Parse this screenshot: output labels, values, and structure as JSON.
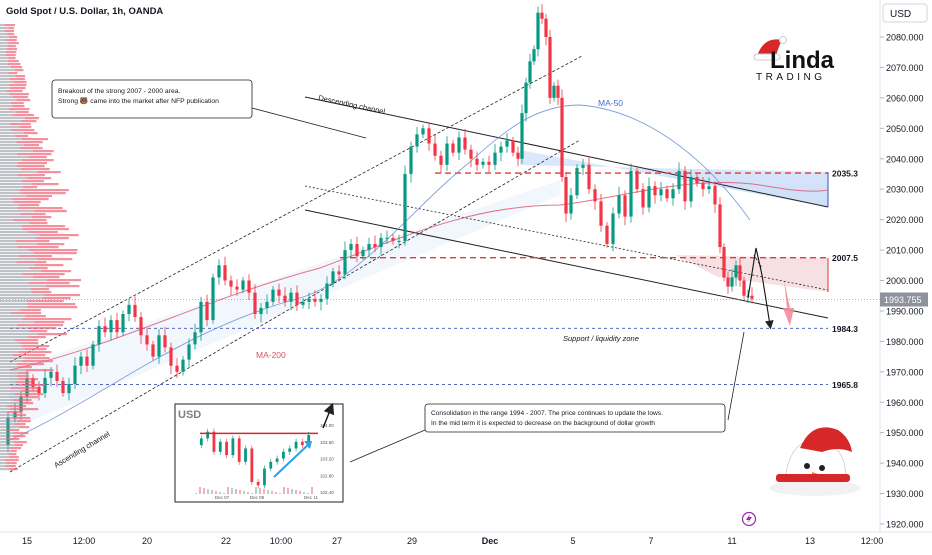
{
  "header": {
    "symbol_title": "Gold Spot / U.S. Dollar, 1h, OANDA",
    "currency_button": "USD"
  },
  "brand": {
    "logo_text_top": "Linda",
    "logo_text_bottom": "TRADING"
  },
  "chart_data": {
    "type": "candlestick",
    "title": "Gold Spot / U.S. Dollar, 1h, OANDA",
    "ylim": [
      1920,
      2090
    ],
    "y_ticks": [
      1920,
      1930,
      1940,
      1950,
      1960,
      1970,
      1980,
      1990,
      2000,
      2010,
      2020,
      2030,
      2040,
      2050,
      2060,
      2070,
      2080
    ],
    "y_tick_labels": [
      "1920.000",
      "1930.000",
      "1940.000",
      "1950.000",
      "1960.000",
      "1970.000",
      "1980.000",
      "1990.000",
      "2000.000",
      "2010.000",
      "2020.000",
      "2030.000",
      "2040.000",
      "2050.000",
      "2060.000",
      "2070.000",
      "2080.000"
    ],
    "x_tick_labels": [
      "15",
      "12:00",
      "20",
      "22",
      "10:00",
      "27",
      "29",
      "Dec",
      "5",
      "7",
      "11",
      "13",
      "12:00"
    ],
    "current_price": 1993.755,
    "current_price_label": "1993.755",
    "levels": [
      {
        "value": 2035.3,
        "label": "2035.3",
        "color": "#e53935",
        "style": "dashed"
      },
      {
        "value": 2007.5,
        "label": "2007.5",
        "color": "#e53935",
        "style": "dashed"
      },
      {
        "value": 1984.3,
        "label": "1984.3",
        "color": "#3f51b5",
        "style": "dashed"
      },
      {
        "value": 1965.8,
        "label": "1965.8",
        "color": "#3f51b5",
        "style": "dashed"
      }
    ],
    "series": [
      {
        "name": "Gold Spot / U.S. Dollar",
        "points": [
          [
            0,
            1946
          ],
          [
            8,
            1955
          ],
          [
            14,
            1957
          ],
          [
            20,
            1962
          ],
          [
            26,
            1968
          ],
          [
            32,
            1965
          ],
          [
            38,
            1963
          ],
          [
            44,
            1968
          ],
          [
            50,
            1970
          ],
          [
            56,
            1967
          ],
          [
            62,
            1963
          ],
          [
            68,
            1966
          ],
          [
            74,
            1972
          ],
          [
            80,
            1975
          ],
          [
            86,
            1972
          ],
          [
            92,
            1979
          ],
          [
            98,
            1985
          ],
          [
            104,
            1983
          ],
          [
            110,
            1987
          ],
          [
            116,
            1983
          ],
          [
            122,
            1989
          ],
          [
            128,
            1992
          ],
          [
            134,
            1988
          ],
          [
            140,
            1982
          ],
          [
            146,
            1979
          ],
          [
            152,
            1975
          ],
          [
            158,
            1982
          ],
          [
            164,
            1978
          ],
          [
            170,
            1972
          ],
          [
            176,
            1970
          ],
          [
            182,
            1974
          ],
          [
            188,
            1979
          ],
          [
            194,
            1983
          ],
          [
            200,
            1993
          ],
          [
            206,
            1987
          ],
          [
            212,
            2001
          ],
          [
            218,
            2005
          ],
          [
            224,
            2000
          ],
          [
            230,
            1998
          ],
          [
            236,
            1997
          ],
          [
            242,
            2000
          ],
          [
            248,
            1996
          ],
          [
            254,
            1989
          ],
          [
            260,
            1991
          ],
          [
            266,
            1993
          ],
          [
            272,
            1997
          ],
          [
            278,
            1995
          ],
          [
            284,
            1993
          ],
          [
            290,
            1996
          ],
          [
            296,
            1992
          ],
          [
            302,
            1993
          ],
          [
            308,
            1994
          ],
          [
            314,
            1993
          ],
          [
            320,
            1994
          ],
          [
            326,
            1999
          ],
          [
            332,
            2003
          ],
          [
            338,
            2002
          ],
          [
            344,
            2010
          ],
          [
            350,
            2012
          ],
          [
            356,
            2008
          ],
          [
            362,
            2010
          ],
          [
            368,
            2012
          ],
          [
            374,
            2011
          ],
          [
            380,
            2014
          ],
          [
            386,
            2014
          ],
          [
            392,
            2013
          ],
          [
            398,
            2013
          ],
          [
            404,
            2035
          ],
          [
            410,
            2044
          ],
          [
            416,
            2048
          ],
          [
            422,
            2050
          ],
          [
            428,
            2045
          ],
          [
            434,
            2041
          ],
          [
            440,
            2038
          ],
          [
            446,
            2045
          ],
          [
            452,
            2042
          ],
          [
            458,
            2047
          ],
          [
            464,
            2043
          ],
          [
            470,
            2040
          ],
          [
            476,
            2038
          ],
          [
            482,
            2039
          ],
          [
            488,
            2038
          ],
          [
            494,
            2042
          ],
          [
            500,
            2044
          ],
          [
            506,
            2046
          ],
          [
            512,
            2042
          ],
          [
            516,
            2040
          ],
          [
            520,
            2055
          ],
          [
            524,
            2065
          ],
          [
            528,
            2072
          ],
          [
            532,
            2076
          ],
          [
            536,
            2088
          ],
          [
            540,
            2086
          ],
          [
            544,
            2080
          ],
          [
            548,
            2060
          ],
          [
            552,
            2064
          ],
          [
            556,
            2060
          ],
          [
            560,
            2034
          ],
          [
            564,
            2022
          ],
          [
            570,
            2028
          ],
          [
            576,
            2037
          ],
          [
            582,
            2038
          ],
          [
            588,
            2030
          ],
          [
            594,
            2026
          ],
          [
            600,
            2018
          ],
          [
            606,
            2012
          ],
          [
            612,
            2022
          ],
          [
            618,
            2028
          ],
          [
            624,
            2021
          ],
          [
            630,
            2036
          ],
          [
            636,
            2030
          ],
          [
            642,
            2024
          ],
          [
            648,
            2031
          ],
          [
            654,
            2028
          ],
          [
            660,
            2030
          ],
          [
            666,
            2027
          ],
          [
            672,
            2030
          ],
          [
            678,
            2036
          ],
          [
            684,
            2026
          ],
          [
            690,
            2034
          ],
          [
            696,
            2032
          ],
          [
            702,
            2030
          ],
          [
            708,
            2031
          ],
          [
            714,
            2025
          ],
          [
            718,
            2011
          ],
          [
            722,
            2001
          ],
          [
            726,
            1998
          ],
          [
            730,
            2001
          ],
          [
            734,
            2005
          ],
          [
            738,
            2000
          ],
          [
            742,
            1995
          ],
          [
            746,
            1995
          ],
          [
            750,
            1994
          ]
        ]
      }
    ],
    "moving_averages": [
      {
        "name": "MA-50",
        "label": "MA-50",
        "color": "#3f6fd8"
      },
      {
        "name": "MA-200",
        "label": "MA-200",
        "color": "#e0506a"
      }
    ],
    "annotations": [
      {
        "id": "breakout",
        "text_lines": [
          "Breakout of the strong 2007 - 2000 area.",
          "Strong 🐻 came into the market after NFP publication"
        ]
      },
      {
        "id": "consolidation",
        "text_lines": [
          "Consolidation in the range 1994 - 2007. The price continues to update the lows.",
          "In the mid term it is expected to decrease on the background of dollar growth"
        ]
      },
      {
        "id": "descending-channel",
        "text": "Descending channel"
      },
      {
        "id": "ascending-channel",
        "text": "Ascending channel"
      },
      {
        "id": "support-zone",
        "text": "Support / liquidity zone"
      }
    ]
  },
  "usd_inset": {
    "title": "USD",
    "y_labels": [
      "104.00",
      "103.60",
      "103.20",
      "102.80",
      "102.40"
    ],
    "x_labels": [
      "Dec 07",
      "Dec 08",
      "Dec 11"
    ],
    "values": [
      103.7,
      103.9,
      104.1,
      103.5,
      103.8,
      103.4,
      103.9,
      103.2,
      103.6,
      102.6,
      102.5,
      103.0,
      103.2,
      103.3,
      103.5,
      103.6,
      103.8,
      103.7,
      104.0
    ]
  },
  "colors": {
    "up": "#089981",
    "down": "#f23645",
    "level_red": "#e53935",
    "level_blue": "#3f51b5",
    "zone_fill": "#c9dcf7",
    "forecast_arrow": "#f28b9b"
  },
  "icons": {
    "lightning": "lightning-icon",
    "santa_hat": "santa-hat-icon",
    "snowman": "snowman-mascot-icon"
  }
}
